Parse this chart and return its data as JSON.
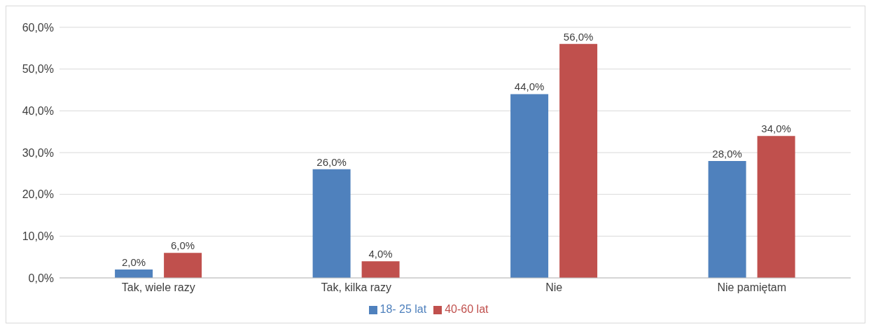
{
  "chart_data": {
    "type": "bar",
    "categories": [
      "Tak, wiele razy",
      "Tak, kilka razy",
      "Nie",
      "Nie pamiętam"
    ],
    "series": [
      {
        "name": "18- 25 lat",
        "color": "#4f81bd",
        "values": [
          2,
          26,
          44,
          28
        ],
        "value_labels": [
          "2,0%",
          "26,0%",
          "44,0%",
          "28,0%"
        ]
      },
      {
        "name": "40-60 lat",
        "color": "#c0504d",
        "values": [
          6,
          4,
          56,
          34
        ],
        "value_labels": [
          "6,0%",
          "4,0%",
          "56,0%",
          "34,0%"
        ]
      }
    ],
    "ylim": [
      0,
      60
    ],
    "yticks": [
      {
        "value": 0,
        "label": "0,0%"
      },
      {
        "value": 10,
        "label": "10,0%"
      },
      {
        "value": 20,
        "label": "20,0%"
      },
      {
        "value": 30,
        "label": "30,0%"
      },
      {
        "value": 40,
        "label": "40,0%"
      },
      {
        "value": 50,
        "label": "50,0%"
      },
      {
        "value": 60,
        "label": "60,0%"
      }
    ],
    "grid": "y",
    "legend": "bottom"
  }
}
